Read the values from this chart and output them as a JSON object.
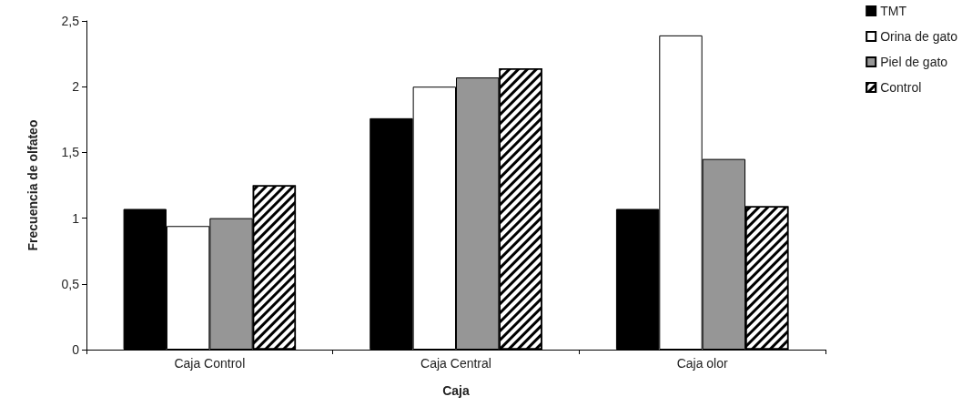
{
  "chart_data": {
    "type": "bar",
    "xlabel": "Caja",
    "ylabel": "Frecuencia de olfateo",
    "categories": [
      "Caja Control",
      "Caja Central",
      "Caja olor"
    ],
    "series": [
      {
        "name": "TMT",
        "color": "#000000",
        "values": [
          1.07,
          1.76,
          1.07
        ]
      },
      {
        "name": "Orina de gato",
        "color": "#ffffff",
        "values": [
          0.94,
          2.0,
          2.39
        ]
      },
      {
        "name": "Piel de gato",
        "color": "#969696",
        "values": [
          1.0,
          2.07,
          1.45
        ]
      },
      {
        "name": "Control",
        "color": "#000000",
        "values": [
          1.25,
          2.14,
          1.09
        ]
      }
    ],
    "ylim": [
      0,
      2.5
    ],
    "yticks": [
      0,
      {
        "value": 0.5,
        "label": "0,5"
      },
      1,
      {
        "value": 1.5,
        "label": "1,5"
      },
      2,
      {
        "value": 2.5,
        "label": "2,5"
      }
    ],
    "grid": false,
    "legend": "top right"
  }
}
